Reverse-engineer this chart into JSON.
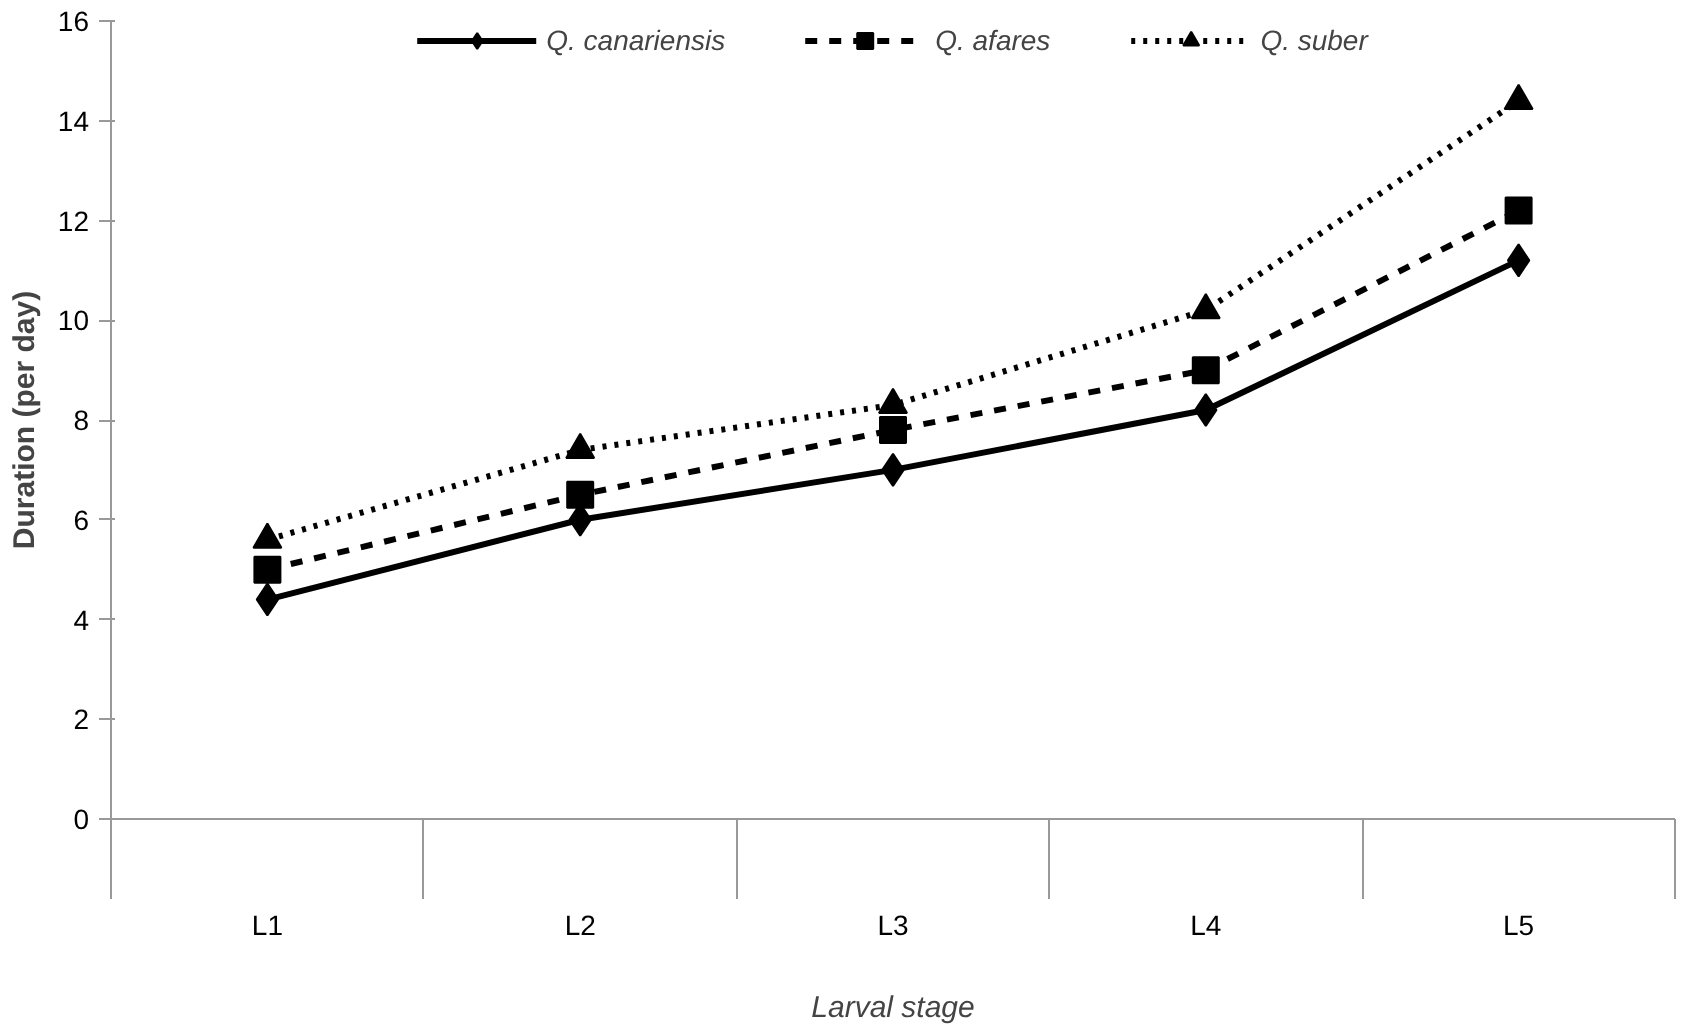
{
  "chart_data": {
    "type": "line",
    "xlabel": "Larval stage",
    "ylabel": "Duration (per day)",
    "categories": [
      "L1",
      "L2",
      "L3",
      "L4",
      "L5"
    ],
    "series": [
      {
        "name": "Q. canariensis",
        "color": "#000000",
        "marker": "diamond",
        "line_style": "solid",
        "values": [
          4.4,
          6.0,
          7.0,
          8.2,
          11.2
        ]
      },
      {
        "name": "Q. afares",
        "color": "#000000",
        "marker": "square",
        "line_style": "dashed",
        "values": [
          5.0,
          6.5,
          7.8,
          9.0,
          12.2
        ]
      },
      {
        "name": "Q. suber",
        "color": "#000000",
        "marker": "triangle",
        "line_style": "dotted",
        "values": [
          5.6,
          7.4,
          8.3,
          10.2,
          14.4
        ]
      }
    ],
    "ylim": [
      0,
      16
    ],
    "yticks": [
      0,
      2,
      4,
      6,
      8,
      10,
      12,
      14,
      16
    ],
    "grid": false,
    "legend": "top"
  }
}
